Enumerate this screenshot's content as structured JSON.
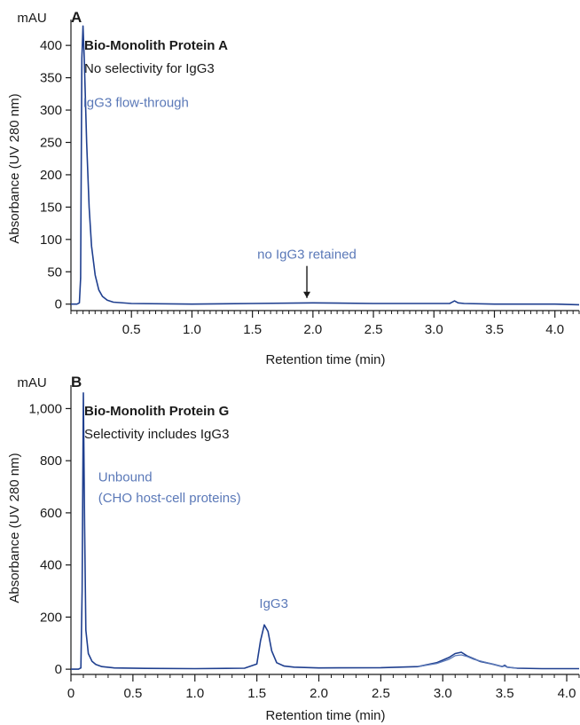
{
  "chart_data": [
    {
      "type": "line",
      "panel_label": "A",
      "title": "Bio-Monolith Protein A",
      "subtitle": "No selectivity for IgG3",
      "xlabel": "Retention time (min)",
      "ylabel": "Absorbance (UV 280 nm)",
      "y_unit": "mAU",
      "xlim": [
        0,
        4.2
      ],
      "ylim": [
        -10,
        440
      ],
      "x_ticks": [
        0.5,
        1.0,
        1.5,
        2.0,
        2.5,
        3.0,
        3.5,
        4.0
      ],
      "x_tick_labels": [
        "0.5",
        "1.0",
        "1.5",
        "2.0",
        "2.5",
        "3.0",
        "3.5",
        "4.0"
      ],
      "y_ticks": [
        0,
        50,
        100,
        150,
        200,
        250,
        300,
        350,
        400
      ],
      "y_tick_labels": [
        "0",
        "50",
        "100",
        "150",
        "200",
        "250",
        "300",
        "350",
        "400"
      ],
      "grid": false,
      "colors": {
        "trace": "#1f3f8f",
        "annotation": "#5b79b8",
        "text": "#1a1a1a"
      },
      "series": [
        {
          "x": [
            0,
            0.05,
            0.07,
            0.08,
            0.09,
            0.1,
            0.11,
            0.13,
            0.15,
            0.17,
            0.2,
            0.23,
            0.26,
            0.3,
            0.35,
            0.5,
            1.0,
            1.5,
            2.0,
            2.5,
            3.0,
            3.13,
            3.17,
            3.2,
            3.25,
            3.5,
            4.0,
            4.2
          ],
          "y": [
            0,
            0,
            2,
            40,
            380,
            430,
            380,
            250,
            150,
            90,
            45,
            22,
            12,
            6,
            3,
            1,
            0,
            1,
            2,
            1,
            1,
            1,
            5,
            2,
            1,
            0,
            0,
            -1
          ]
        }
      ],
      "annotations": [
        {
          "text": "IgG3 flow-through",
          "x": 0.1,
          "y": 305
        },
        {
          "text": "no IgG3 retained",
          "x": 1.95,
          "y": 70,
          "arrow_to": [
            1.95,
            4
          ]
        }
      ]
    },
    {
      "type": "line",
      "panel_label": "B",
      "title": "Bio-Monolith Protein G",
      "subtitle": "Selectivity includes IgG3",
      "xlabel": "Retention time (min)",
      "ylabel": "Absorbance (UV 280 nm)",
      "y_unit": "mAU",
      "xlim": [
        0,
        4.1
      ],
      "ylim": [
        -20,
        1090
      ],
      "x_ticks": [
        0,
        0.5,
        1.0,
        1.5,
        2.0,
        2.5,
        3.0,
        3.5,
        4.0
      ],
      "x_tick_labels": [
        "0",
        "0.5",
        "1.0",
        "1.5",
        "2.0",
        "2.5",
        "3.0",
        "3.5",
        "4.0"
      ],
      "y_ticks": [
        0,
        200,
        400,
        600,
        800,
        1000
      ],
      "y_tick_labels": [
        "0",
        "200",
        "400",
        "600",
        "800",
        "1,000"
      ],
      "grid": false,
      "colors": {
        "trace": "#1f3f8f",
        "trace2": "#5b79b8",
        "annotation": "#5b79b8",
        "text": "#1a1a1a"
      },
      "series": [
        {
          "x": [
            0,
            0.06,
            0.08,
            0.09,
            0.1,
            0.11,
            0.12,
            0.14,
            0.17,
            0.2,
            0.25,
            0.35,
            0.6,
            1.0,
            1.4,
            1.5,
            1.53,
            1.56,
            1.59,
            1.62,
            1.66,
            1.72,
            1.8,
            2.0,
            2.5,
            2.8,
            2.95,
            3.05,
            3.1,
            3.15,
            3.2,
            3.25,
            3.3,
            3.4,
            3.48,
            3.5,
            3.52,
            3.6,
            3.8,
            4.1
          ],
          "y": [
            0,
            0,
            5,
            300,
            1060,
            550,
            150,
            60,
            30,
            18,
            10,
            5,
            3,
            2,
            4,
            20,
            110,
            170,
            145,
            70,
            25,
            12,
            8,
            5,
            6,
            10,
            25,
            45,
            60,
            65,
            50,
            40,
            30,
            20,
            10,
            15,
            8,
            4,
            2,
            2
          ]
        },
        {
          "x": [
            2.8,
            2.95,
            3.05,
            3.1,
            3.15,
            3.2,
            3.25,
            3.3,
            3.4,
            3.48,
            3.5,
            3.52,
            3.6
          ],
          "y": [
            10,
            22,
            38,
            52,
            55,
            48,
            38,
            32,
            20,
            10,
            12,
            8,
            4
          ]
        }
      ],
      "annotations": [
        {
          "text": "Unbound",
          "x": 0.22,
          "y": 720
        },
        {
          "text": "(CHO host-cell proteins)",
          "x": 0.22,
          "y": 640
        },
        {
          "text": "IgG3",
          "x": 1.52,
          "y": 235
        }
      ]
    }
  ]
}
